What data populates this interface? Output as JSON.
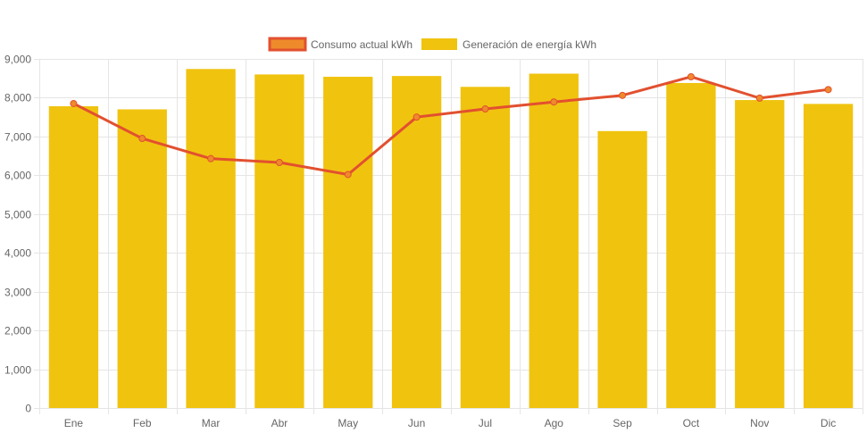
{
  "colors": {
    "bar_fill": "#f0c30f",
    "line_stroke": "#e2502f",
    "point_fill": "#ee8a2a",
    "grid": "#e5e5e5",
    "axis_text": "#666666"
  },
  "legend": {
    "items": [
      {
        "label": "Consumo actual kWh",
        "type": "line"
      },
      {
        "label": "Generación de energía kWh",
        "type": "bar"
      }
    ]
  },
  "chart_data": {
    "type": "bar",
    "categories": [
      "Ene",
      "Feb",
      "Mar",
      "Abr",
      "May",
      "Jun",
      "Jul",
      "Ago",
      "Sep",
      "Oct",
      "Nov",
      "Dic"
    ],
    "series": [
      {
        "name": "Consumo actual kWh",
        "type": "line",
        "values": [
          7850,
          6950,
          6430,
          6330,
          6020,
          7500,
          7710,
          7890,
          8060,
          8540,
          7990,
          8210
        ]
      },
      {
        "name": "Generación de energía kWh",
        "type": "bar",
        "values": [
          7780,
          7700,
          8740,
          8600,
          8540,
          8560,
          8280,
          8620,
          7140,
          8380,
          7940,
          7840
        ]
      }
    ],
    "yticks": [
      "0",
      "1,000",
      "2,000",
      "3,000",
      "4,000",
      "5,000",
      "6,000",
      "7,000",
      "8,000",
      "9,000"
    ],
    "ylim": [
      0,
      9000
    ],
    "grid": true,
    "legend_position": "top"
  }
}
